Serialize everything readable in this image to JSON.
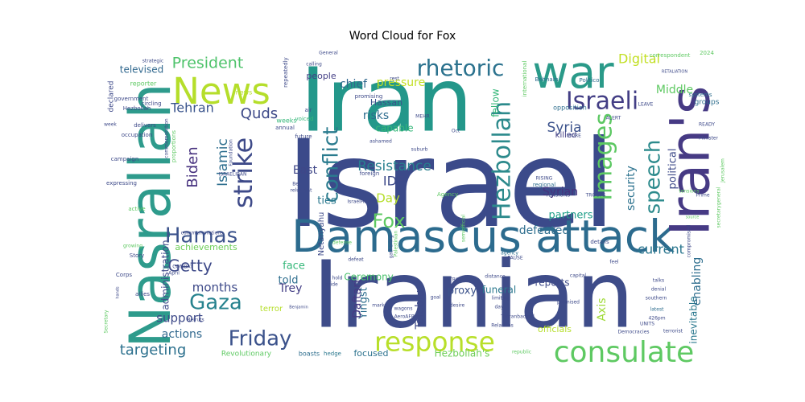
{
  "title": "Word Cloud for Fox",
  "cloud": {
    "palette": [
      "#440154",
      "#482878",
      "#3e4989",
      "#31688e",
      "#26828e",
      "#1f9e89",
      "#35b779",
      "#6ece58",
      "#b5de2b",
      "#fde725"
    ],
    "words": [
      {
        "text": "Israel",
        "color": "#3b4a8a"
      },
      {
        "text": "Iran",
        "color": "#23978a"
      },
      {
        "text": "Iranian",
        "color": "#3e4c89"
      },
      {
        "text": "Damascus attack",
        "color": "#2c6b8e"
      },
      {
        "text": "Iran's",
        "color": "#463a84"
      },
      {
        "text": "Nasrallah",
        "color": "#2e9b8c"
      },
      {
        "text": "war",
        "color": "#2a9a89"
      },
      {
        "text": "News",
        "color": "#b5de2b"
      },
      {
        "text": "consulate",
        "color": "#5ec962"
      },
      {
        "text": "response",
        "color": "#b8df2a"
      },
      {
        "text": "Hezbollah",
        "color": "#2c8a8c"
      },
      {
        "text": "rhetoric",
        "color": "#2b728e"
      },
      {
        "text": "Israeli",
        "color": "#433e85"
      },
      {
        "text": "conflict",
        "color": "#2a7b8e"
      },
      {
        "text": "Friday",
        "color": "#3b528b"
      },
      {
        "text": "strike",
        "color": "#3e4a89"
      },
      {
        "text": "Images",
        "color": "#5dc863"
      },
      {
        "text": "speech",
        "color": "#2c8a8c"
      },
      {
        "text": "Gaza",
        "color": "#26828e"
      },
      {
        "text": "Hamas",
        "color": "#3b528b"
      },
      {
        "text": "Fox",
        "color": "#5ec962"
      },
      {
        "text": "Biden",
        "color": "#46307e"
      },
      {
        "text": "President",
        "color": "#4ec36b"
      },
      {
        "text": "Getty",
        "color": "#3e4a89"
      },
      {
        "text": "Digital",
        "color": "#c2df23"
      },
      {
        "text": "targeting",
        "color": "#2d718e"
      },
      {
        "text": "Resistance",
        "color": "#277f8e"
      },
      {
        "text": "Syria",
        "color": "#3b528b"
      },
      {
        "text": "Quds",
        "color": "#3e4a89"
      },
      {
        "text": "Islamic",
        "color": "#2e6e8e"
      },
      {
        "text": "Tehran",
        "color": "#3a548c"
      },
      {
        "text": "Middle",
        "color": "#5ec962"
      },
      {
        "text": "East",
        "color": "#3f4788"
      },
      {
        "text": "Day",
        "color": "#b5de2b"
      },
      {
        "text": "IDF",
        "color": "#3e4a89"
      },
      {
        "text": "defeated",
        "color": "#2e6e8e"
      },
      {
        "text": "current",
        "color": "#2a768e"
      },
      {
        "text": "months",
        "color": "#3e4a89"
      },
      {
        "text": "support",
        "color": "#3e4a89"
      },
      {
        "text": "actions",
        "color": "#31688e"
      },
      {
        "text": "Syrian",
        "color": "#46327e"
      },
      {
        "text": "partners",
        "color": "#1f9e89"
      },
      {
        "text": "security",
        "color": "#2c728e"
      },
      {
        "text": "Axis",
        "color": "#a0da39"
      },
      {
        "text": "inevitable",
        "color": "#2a788e"
      },
      {
        "text": "enabling",
        "color": "#2e6e8e"
      },
      {
        "text": "political",
        "color": "#3e4a89"
      },
      {
        "text": "pressure",
        "color": "#c2df23"
      },
      {
        "text": "risks",
        "color": "#2c6b8e"
      },
      {
        "text": "chief",
        "color": "#31688e"
      },
      {
        "text": "Hassan",
        "color": "#3b528b"
      },
      {
        "text": "capable",
        "color": "#35b779"
      },
      {
        "text": "Yingst",
        "color": "#2e6e8e"
      },
      {
        "text": "Trey",
        "color": "#433e85"
      },
      {
        "text": "face",
        "color": "#35b779"
      },
      {
        "text": "told",
        "color": "#2e6e8e"
      },
      {
        "text": "Ceremony",
        "color": "#4ac16d"
      },
      {
        "text": "Daftari",
        "color": "#463a84"
      },
      {
        "text": "funeral",
        "color": "#2a788e"
      },
      {
        "text": "proxy",
        "color": "#3b528b"
      },
      {
        "text": "officials",
        "color": "#b5de2b"
      },
      {
        "text": "reports",
        "color": "#3e4a89"
      },
      {
        "text": "focused",
        "color": "#2c728e"
      },
      {
        "text": "Hezbollah's",
        "color": "#6ece58"
      },
      {
        "text": "administration",
        "color": "#3e4a89"
      },
      {
        "text": "achievements",
        "color": "#6ece58"
      },
      {
        "text": "fellow",
        "color": "#35b779"
      },
      {
        "text": "televised",
        "color": "#31688e"
      },
      {
        "text": "people",
        "color": "#433e85"
      },
      {
        "text": "ties",
        "color": "#2a788e"
      },
      {
        "text": "Netanyahu",
        "color": "#3e4a89"
      },
      {
        "text": "terror",
        "color": "#b5de2b"
      },
      {
        "text": "Taleblu",
        "color": "#3e4a89"
      },
      {
        "text": "Revolutionary",
        "color": "#5ec962"
      },
      {
        "text": "boasts",
        "color": "#2e6e8e"
      },
      {
        "text": "hedge",
        "color": "#2a788e"
      },
      {
        "text": "killed",
        "color": "#433e85"
      },
      {
        "text": "opposition",
        "color": "#2e6e8e"
      },
      {
        "text": "Behnam",
        "color": "#2e6e8e"
      },
      {
        "text": "Politico",
        "color": "#2e6e8e"
      },
      {
        "text": "groups",
        "color": "#2e6e8e"
      },
      {
        "text": "correspondent",
        "color": "#5ec962"
      },
      {
        "text": "2024",
        "color": "#5ec962"
      },
      {
        "text": "declared",
        "color": "#3e4a89"
      },
      {
        "text": "government",
        "color": "#3e4a89"
      },
      {
        "text": "occupation",
        "color": "#3e4a89"
      },
      {
        "text": "campaign",
        "color": "#3e4a89"
      },
      {
        "text": "expressing",
        "color": "#3e4a89"
      },
      {
        "text": "active",
        "color": "#5ec962"
      },
      {
        "text": "Story",
        "color": "#3e4a89"
      },
      {
        "text": "Corps",
        "color": "#3e4a89"
      },
      {
        "text": "allies",
        "color": "#3e4a89"
      },
      {
        "text": "April",
        "color": "#3e4a89"
      },
      {
        "text": "weeks",
        "color": "#35b779"
      },
      {
        "text": "annual",
        "color": "#3e4a89"
      },
      {
        "text": "reporter",
        "color": "#5ec962"
      },
      {
        "text": "strategic",
        "color": "#3e4a89"
      },
      {
        "text": "calling",
        "color": "#3e4a89"
      },
      {
        "text": "General",
        "color": "#3e4a89"
      },
      {
        "text": "news",
        "color": "#b5de2b"
      },
      {
        "text": "Foundation",
        "color": "#3e4a89"
      },
      {
        "text": "Ben",
        "color": "#3e4a89"
      },
      {
        "text": "reluctant",
        "color": "#3e4a89"
      },
      {
        "text": "foreign",
        "color": "#3e4a89"
      },
      {
        "text": "regional",
        "color": "#2e6e8e"
      },
      {
        "text": "RISING",
        "color": "#3e4a89"
      },
      {
        "text": "details",
        "color": "#3e4a89"
      },
      {
        "text": "agency",
        "color": "#2e6e8e"
      },
      {
        "text": "distance",
        "color": "#3e4a89"
      },
      {
        "text": "limiting",
        "color": "#3e4a89"
      },
      {
        "text": "goal",
        "color": "#3e4a89"
      },
      {
        "text": "desire",
        "color": "#3e4a89"
      },
      {
        "text": "day",
        "color": "#3e4a89"
      },
      {
        "text": "mark",
        "color": "#3e4a89"
      },
      {
        "text": "promised",
        "color": "#3e4a89"
      },
      {
        "text": "capital",
        "color": "#3e4a89"
      },
      {
        "text": "feel",
        "color": "#3e4a89"
      },
      {
        "text": "talks",
        "color": "#3e4a89"
      },
      {
        "text": "denial",
        "color": "#3e4a89"
      },
      {
        "text": "southern",
        "color": "#3e4a89"
      },
      {
        "text": "latest",
        "color": "#2e6e8e"
      },
      {
        "text": "426pm",
        "color": "#3e4a89"
      },
      {
        "text": "UNITS",
        "color": "#3e4a89"
      },
      {
        "text": "Democracies",
        "color": "#3e4a89"
      },
      {
        "text": "terrorist",
        "color": "#3e4a89"
      },
      {
        "text": "republic",
        "color": "#5ec962"
      },
      {
        "text": "Relations",
        "color": "#3e4a89"
      },
      {
        "text": "wagons",
        "color": "#3e4a89"
      },
      {
        "text": "AeroAFP",
        "color": "#3e4a89"
      },
      {
        "text": "STRIKE",
        "color": "#3e4a89"
      },
      {
        "text": "Agency",
        "color": "#5ec962"
      },
      {
        "text": "defense",
        "color": "#5ec962"
      },
      {
        "text": "promising",
        "color": "#3e4a89"
      },
      {
        "text": "rest",
        "color": "#3e4a89"
      },
      {
        "text": "MEHR",
        "color": "#3e4a89"
      },
      {
        "text": "Oct",
        "color": "#3e4a89"
      },
      {
        "text": "suburb",
        "color": "#3e4a89"
      },
      {
        "text": "future",
        "color": "#3e4a89"
      },
      {
        "text": "air",
        "color": "#3e4a89"
      },
      {
        "text": "voiced",
        "color": "#35b779"
      },
      {
        "text": "ashamed",
        "color": "#3e4a89"
      },
      {
        "text": "IsraelHamas",
        "color": "#3e4a89"
      },
      {
        "text": "Palestinian",
        "color": "#5ec962"
      },
      {
        "text": "semiofficial",
        "color": "#5ec962"
      },
      {
        "text": "TENSIONS",
        "color": "#3e4a89"
      },
      {
        "text": "TROOPS",
        "color": "#3e4a89"
      },
      {
        "text": "LEAVE",
        "color": "#3e4a89"
      },
      {
        "text": "READY",
        "color": "#3e4a89"
      },
      {
        "text": "ALERT",
        "color": "#3e4a89"
      },
      {
        "text": "MORE",
        "color": "#3e4a89"
      },
      {
        "text": "RETALIATION",
        "color": "#3e4a89"
      },
      {
        "text": "systems",
        "color": "#2e6e8e"
      },
      {
        "text": "compromised",
        "color": "#3e4a89"
      },
      {
        "text": "Jerusalem",
        "color": "#5ec962"
      },
      {
        "text": "secretarygeneral",
        "color": "#5ec962"
      },
      {
        "text": "Prime",
        "color": "#3e4a89"
      },
      {
        "text": "Minister",
        "color": "#3e4a89"
      },
      {
        "text": "tensions",
        "color": "#5ec962"
      },
      {
        "text": "source",
        "color": "#5ec962"
      },
      {
        "text": "Hezbollah",
        "color": "#3e4a89"
      },
      {
        "text": "delivers",
        "color": "#3e4a89"
      },
      {
        "text": "circling",
        "color": "#3e4a89"
      },
      {
        "text": "commemoration",
        "color": "#3e4a89"
      },
      {
        "text": "proportions",
        "color": "#5ec962"
      },
      {
        "text": "ISRAELIRAN",
        "color": "#3e4a89"
      },
      {
        "text": "commemorations",
        "color": "#3e4a89"
      },
      {
        "text": "growing",
        "color": "#5ec962"
      },
      {
        "text": "COMBAT",
        "color": "#3e4a89"
      },
      {
        "text": "Secretary",
        "color": "#5ec962"
      },
      {
        "text": "Beiruts",
        "color": "#3e4a89"
      },
      {
        "text": "Benjamin",
        "color": "#3e4a89"
      },
      {
        "text": "pride",
        "color": "#3e4a89"
      },
      {
        "text": "hold",
        "color": "#3e4a89"
      },
      {
        "text": "gathering",
        "color": "#3e4a89"
      },
      {
        "text": "defeat",
        "color": "#3e4a89"
      },
      {
        "text": "Tehranbacked",
        "color": "#3e4a89"
      },
      {
        "text": "PAUSE",
        "color": "#3e4a89"
      },
      {
        "text": "repeatedly",
        "color": "#3e4a89"
      },
      {
        "text": "international",
        "color": "#5ec962"
      },
      {
        "text": "week",
        "color": "#3e4a89"
      },
      {
        "text": "hands",
        "color": "#3e4a89"
      }
    ]
  }
}
